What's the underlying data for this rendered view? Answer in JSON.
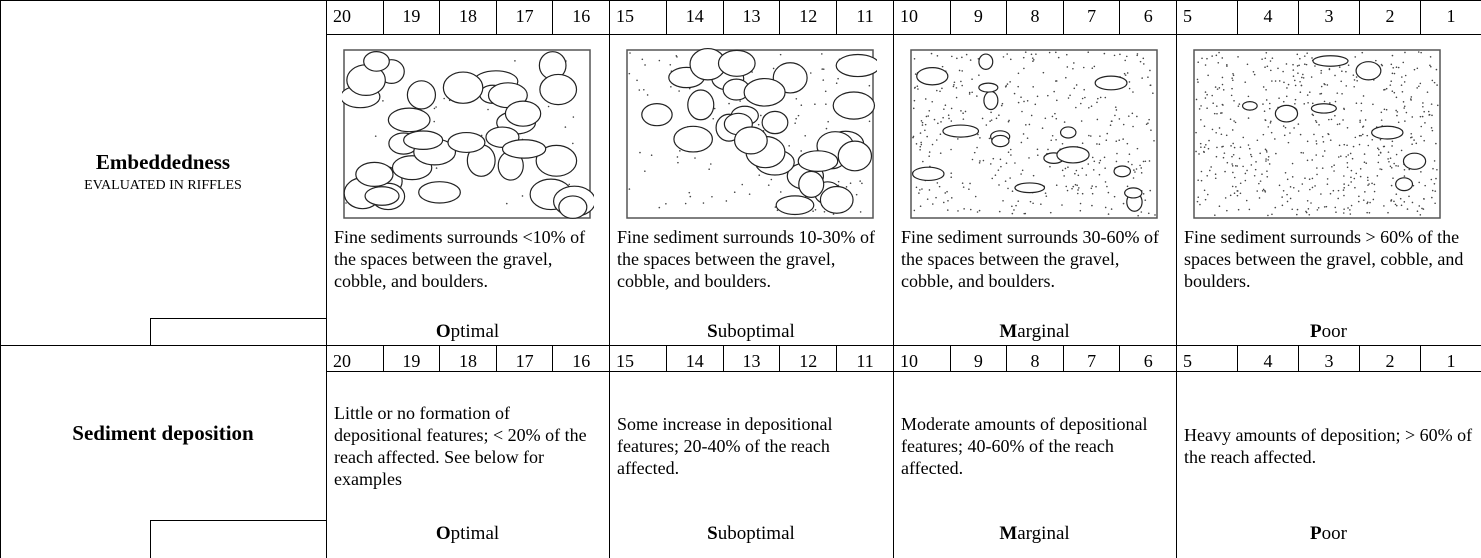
{
  "rows": [
    {
      "title": "Embeddedness",
      "subtitle": "EVALUATED IN RIFFLES",
      "conditions": [
        {
          "scores": [
            20,
            19,
            18,
            17,
            16
          ],
          "description": "Fine sediments surrounds <10% of the spaces between the gravel, cobble, and boulders.",
          "label_initial": "O",
          "label_rest": "ptimal"
        },
        {
          "scores": [
            15,
            14,
            13,
            12,
            11
          ],
          "description": "Fine sediment surrounds 10-30% of the spaces between the gravel, cobble, and boulders.",
          "label_initial": "S",
          "label_rest": "uboptimal"
        },
        {
          "scores": [
            10,
            9,
            8,
            7,
            6
          ],
          "description": "Fine sediment surrounds 30-60% of the spaces between the gravel, cobble, and boulders.",
          "label_initial": "M",
          "label_rest": "arginal"
        },
        {
          "scores": [
            5,
            4,
            3,
            2,
            1
          ],
          "description": "Fine sediment surrounds > 60% of the spaces between the gravel, cobble, and boulders.",
          "label_initial": "P",
          "label_rest": "oor"
        }
      ]
    },
    {
      "title": "Sediment deposition",
      "conditions": [
        {
          "scores": [
            20,
            19,
            18,
            17,
            16
          ],
          "description": "Little or no formation of depositional features; < 20% of the reach affected. See below for examples",
          "label_initial": "O",
          "label_rest": "ptimal"
        },
        {
          "scores": [
            15,
            14,
            13,
            12,
            11
          ],
          "description": "Some increase in depositional features; 20-40% of the reach affected.",
          "label_initial": "S",
          "label_rest": "uboptimal"
        },
        {
          "scores": [
            10,
            9,
            8,
            7,
            6
          ],
          "description": "Moderate amounts of depositional features; 40-60% of the reach affected.",
          "label_initial": "M",
          "label_rest": "arginal"
        },
        {
          "scores": [
            5,
            4,
            3,
            2,
            1
          ],
          "description": "Heavy amounts of deposition; > 60% of the reach affected.",
          "label_initial": "P",
          "label_rest": "oor"
        }
      ]
    }
  ]
}
